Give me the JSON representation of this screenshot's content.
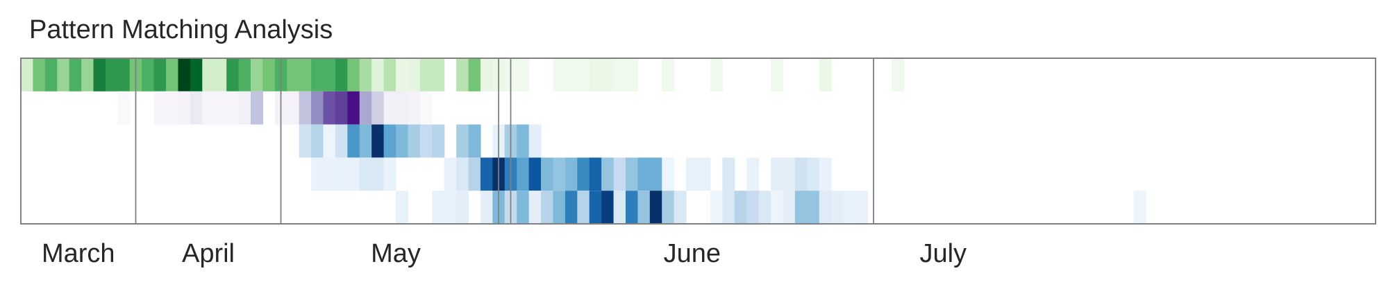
{
  "chart_data": {
    "type": "heatmap",
    "title": "Pattern Matching Analysis",
    "xlabel": "",
    "ylabel": "",
    "x_axis": {
      "months": [
        "March",
        "April",
        "May",
        "June",
        "July"
      ],
      "month_boundary_weeks": [
        0,
        9.5,
        21.5,
        40.5,
        70.5,
        82
      ],
      "week_range": [
        0,
        112
      ]
    },
    "extra_dividers_weeks": [
      39.5
    ],
    "colors": {
      "row1": "#00441b",
      "row2": "#3f007d",
      "rows3to5": "#08306b",
      "frame": "#808080"
    },
    "rows": [
      {
        "colormap": "Greens",
        "values": [
          0.2,
          0.5,
          0.6,
          0.4,
          0.6,
          0.4,
          0.8,
          0.7,
          0.7,
          0.5,
          0.6,
          0.7,
          0.5,
          1.0,
          0.9,
          0.2,
          0.2,
          0.7,
          0.6,
          0.4,
          0.5,
          0.6,
          0.5,
          0.5,
          0.6,
          0.6,
          0.7,
          0.5,
          0.35,
          0.15,
          0.3,
          0.1,
          0.12,
          0.25,
          0.25,
          0.0,
          0.3,
          0.5,
          0.1,
          0.08,
          0.05,
          0.05,
          0.0,
          0.0,
          0.05,
          0.05,
          0.05,
          0.08,
          0.08,
          0.05,
          0.05,
          0.0,
          0.0,
          0.05,
          0.0,
          0.0,
          0.0,
          0.05,
          0.0,
          0.0,
          0.0,
          0.0,
          0.05,
          0.0,
          0.0,
          0.0,
          0.08,
          0.0,
          0,
          0,
          0,
          0,
          0.05,
          0,
          0,
          0,
          0,
          0,
          0,
          0,
          0,
          0,
          0,
          0,
          0,
          0,
          0,
          0,
          0,
          0,
          0,
          0,
          0,
          0,
          0,
          0,
          0,
          0,
          0,
          0,
          0,
          0,
          0,
          0,
          0,
          0,
          0,
          0,
          0,
          0,
          0,
          0
        ]
      },
      {
        "colormap": "Purples",
        "values": [
          0,
          0,
          0,
          0,
          0,
          0,
          0,
          0,
          0.03,
          0,
          0,
          0.05,
          0.05,
          0.08,
          0.15,
          0.05,
          0.05,
          0.05,
          0.1,
          0.35,
          0.0,
          0.08,
          0.08,
          0.35,
          0.55,
          0.75,
          0.8,
          0.95,
          0.45,
          0.3,
          0.1,
          0.1,
          0.08,
          0.03,
          0,
          0,
          0,
          0,
          0,
          0,
          0,
          0,
          0,
          0,
          0,
          0,
          0,
          0,
          0,
          0,
          0,
          0,
          0,
          0,
          0,
          0,
          0,
          0,
          0,
          0,
          0,
          0,
          0,
          0,
          0,
          0,
          0,
          0,
          0,
          0,
          0,
          0,
          0,
          0,
          0,
          0,
          0,
          0,
          0,
          0,
          0,
          0,
          0,
          0,
          0,
          0,
          0,
          0,
          0,
          0,
          0,
          0,
          0,
          0,
          0,
          0,
          0,
          0,
          0,
          0,
          0,
          0,
          0,
          0,
          0,
          0,
          0,
          0,
          0,
          0,
          0,
          0,
          0,
          0
        ]
      },
      {
        "colormap": "Blues",
        "values": [
          0,
          0,
          0,
          0,
          0,
          0,
          0,
          0,
          0,
          0,
          0,
          0,
          0,
          0,
          0,
          0,
          0,
          0,
          0,
          0,
          0,
          0,
          0,
          0.2,
          0.3,
          0.05,
          0.2,
          0.6,
          0.45,
          1.0,
          0.55,
          0.45,
          0.35,
          0.25,
          0.3,
          0.0,
          0.35,
          0.45,
          0.0,
          0.08,
          0.35,
          0.45,
          0.1,
          0,
          0,
          0,
          0,
          0,
          0,
          0,
          0,
          0,
          0,
          0,
          0,
          0,
          0,
          0,
          0,
          0,
          0,
          0,
          0,
          0,
          0,
          0,
          0,
          0,
          0,
          0,
          0,
          0,
          0,
          0,
          0,
          0,
          0,
          0,
          0,
          0,
          0,
          0,
          0,
          0,
          0,
          0,
          0,
          0,
          0,
          0,
          0,
          0,
          0,
          0,
          0,
          0,
          0,
          0,
          0,
          0,
          0,
          0,
          0,
          0,
          0,
          0,
          0,
          0,
          0,
          0,
          0,
          0
        ]
      },
      {
        "colormap": "Blues",
        "values": [
          0,
          0,
          0,
          0,
          0,
          0,
          0,
          0,
          0,
          0,
          0,
          0,
          0,
          0,
          0,
          0,
          0,
          0,
          0,
          0,
          0,
          0,
          0,
          0,
          0.07,
          0.07,
          0.08,
          0.07,
          0.15,
          0.15,
          0.07,
          0.0,
          0.0,
          0.0,
          0.0,
          0.07,
          0.15,
          0.3,
          0.8,
          1.0,
          0.7,
          0.55,
          0.85,
          0.45,
          0.4,
          0.45,
          0.65,
          0.8,
          0.4,
          0.25,
          0.4,
          0.5,
          0.5,
          0.05,
          0.0,
          0.08,
          0.08,
          0.0,
          0.15,
          0.0,
          0.07,
          0.0,
          0.1,
          0.1,
          0.2,
          0.15,
          0.07,
          0,
          0,
          0,
          0,
          0,
          0,
          0,
          0,
          0,
          0,
          0,
          0,
          0,
          0,
          0,
          0,
          0,
          0,
          0,
          0,
          0,
          0,
          0,
          0,
          0,
          0,
          0,
          0,
          0,
          0,
          0,
          0,
          0,
          0,
          0,
          0,
          0,
          0,
          0,
          0,
          0,
          0,
          0,
          0,
          0,
          0,
          0
        ]
      },
      {
        "colormap": "Blues",
        "values": [
          0,
          0,
          0,
          0,
          0,
          0,
          0,
          0,
          0,
          0,
          0,
          0,
          0,
          0,
          0,
          0,
          0,
          0,
          0,
          0,
          0,
          0,
          0,
          0,
          0,
          0,
          0,
          0,
          0,
          0,
          0,
          0.07,
          0.0,
          0.0,
          0.08,
          0.08,
          0.1,
          0.0,
          0.1,
          0.45,
          0.25,
          0.45,
          0.1,
          0.3,
          0.45,
          0.7,
          0.3,
          0.8,
          0.95,
          0.15,
          0.7,
          0.4,
          1.0,
          0.35,
          0.15,
          0.0,
          0.0,
          0.05,
          0.15,
          0.3,
          0.25,
          0.15,
          0.05,
          0.1,
          0.4,
          0.4,
          0.12,
          0.1,
          0.08,
          0.07,
          0,
          0,
          0,
          0,
          0,
          0,
          0,
          0,
          0,
          0,
          0,
          0,
          0,
          0,
          0,
          0,
          0,
          0,
          0,
          0,
          0,
          0,
          0.05,
          0,
          0,
          0,
          0,
          0,
          0,
          0,
          0,
          0,
          0,
          0,
          0,
          0,
          0,
          0,
          0,
          0,
          0,
          0,
          0,
          0,
          0,
          0,
          0,
          0
        ]
      }
    ]
  }
}
